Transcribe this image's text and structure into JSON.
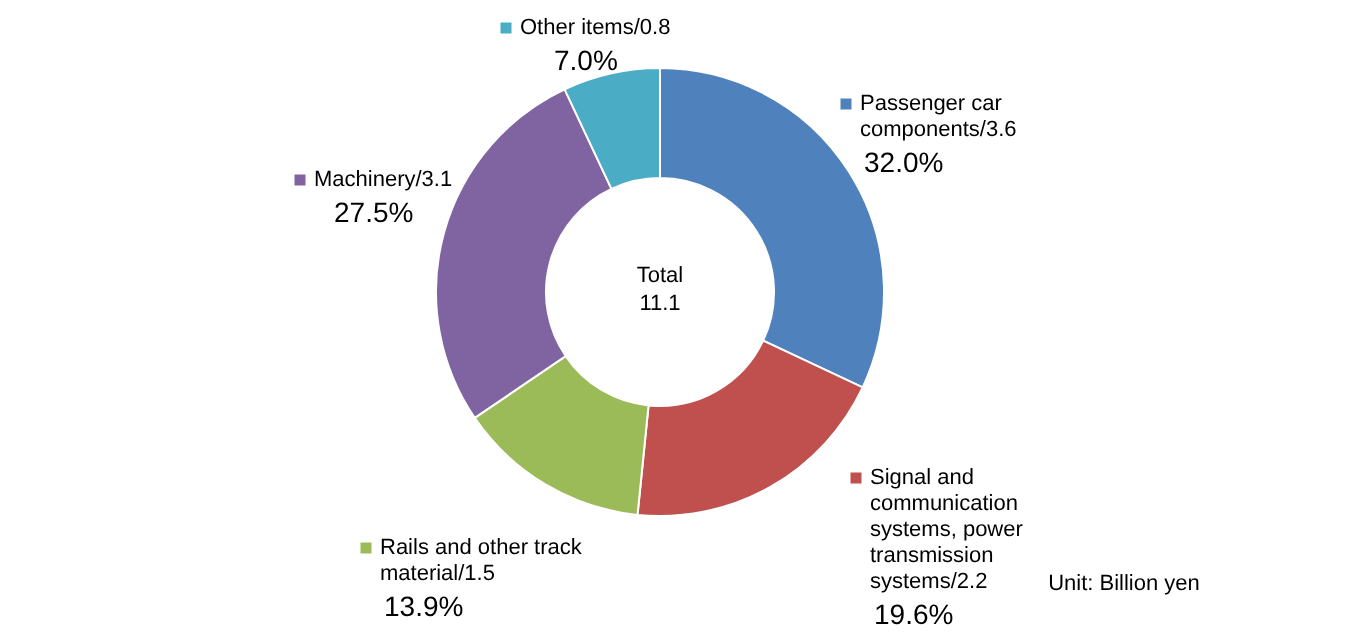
{
  "chart_data": {
    "type": "donut",
    "categories": [
      "Passenger car\ncomponents/3.6",
      "Signal and\ncommunication\nsystems, power\ntransmission\nsystems/2.2",
      "Rails and other track\nmaterial/1.5",
      "Machinery/3.1",
      "Other  items/0.8"
    ],
    "values": [
      32.0,
      19.6,
      13.9,
      27.5,
      7.0
    ],
    "value_labels": [
      "32.0%",
      "19.6%",
      "13.9%",
      "27.5%",
      "7.0%"
    ],
    "colors": [
      "#4f81bd",
      "#c0504d",
      "#9bbb59",
      "#8064a2",
      "#4bacc6"
    ],
    "annotations": [
      "Total\n11.1",
      "Unit: Billion yen"
    ],
    "legend": "right"
  }
}
